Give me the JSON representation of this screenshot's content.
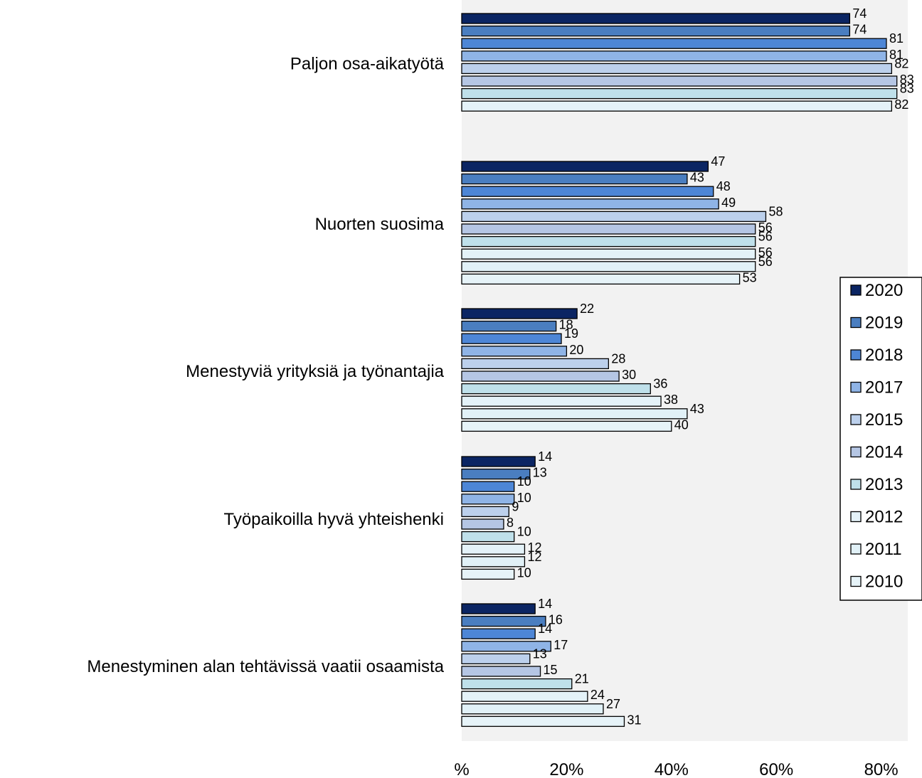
{
  "chart_data": {
    "type": "bar",
    "orientation": "horizontal",
    "categories": [
      "Paljon osa-aikatyötä",
      "Nuorten suosima",
      "Menestyviä yrityksiä ja työnantajia",
      "Työpaikoilla hyvä yhteishenki",
      "Menestyminen alan tehtävissä vaatii osaamista"
    ],
    "series": [
      {
        "name": "2020",
        "color": "#0b2563",
        "values": [
          74,
          47,
          22,
          14,
          14
        ]
      },
      {
        "name": "2019",
        "color": "#4a7ec0",
        "values": [
          74,
          43,
          18,
          13,
          16
        ]
      },
      {
        "name": "2018",
        "color": "#4d86d6",
        "values": [
          81,
          48,
          19,
          10,
          14
        ]
      },
      {
        "name": "2017",
        "color": "#8fb4e6",
        "values": [
          81,
          49,
          20,
          10,
          17
        ]
      },
      {
        "name": "2015",
        "color": "#bcd0ec",
        "values": [
          82,
          58,
          28,
          9,
          13
        ]
      },
      {
        "name": "2014",
        "color": "#b5c6e4",
        "values": [
          83,
          56,
          30,
          8,
          15
        ]
      },
      {
        "name": "2013",
        "color": "#bfe0ea",
        "values": [
          83,
          56,
          36,
          10,
          21
        ]
      },
      {
        "name": "2012",
        "color": "#e4f2f8",
        "values": [
          82,
          56,
          38,
          12,
          24
        ]
      },
      {
        "name": "2011",
        "color": "#e1f1f7",
        "values": [
          null,
          56,
          43,
          12,
          27
        ]
      },
      {
        "name": "2010",
        "color": "#e6f3f8",
        "values": [
          null,
          53,
          40,
          10,
          31
        ]
      }
    ],
    "xlim": [
      0,
      85
    ],
    "xticks": [
      0,
      20,
      40,
      60,
      80
    ],
    "xtick_labels": [
      "%",
      "20%",
      "40%",
      "60%",
      "80%"
    ],
    "grid": false,
    "legend_position": "right",
    "plot_background": "#f2f2f2"
  }
}
